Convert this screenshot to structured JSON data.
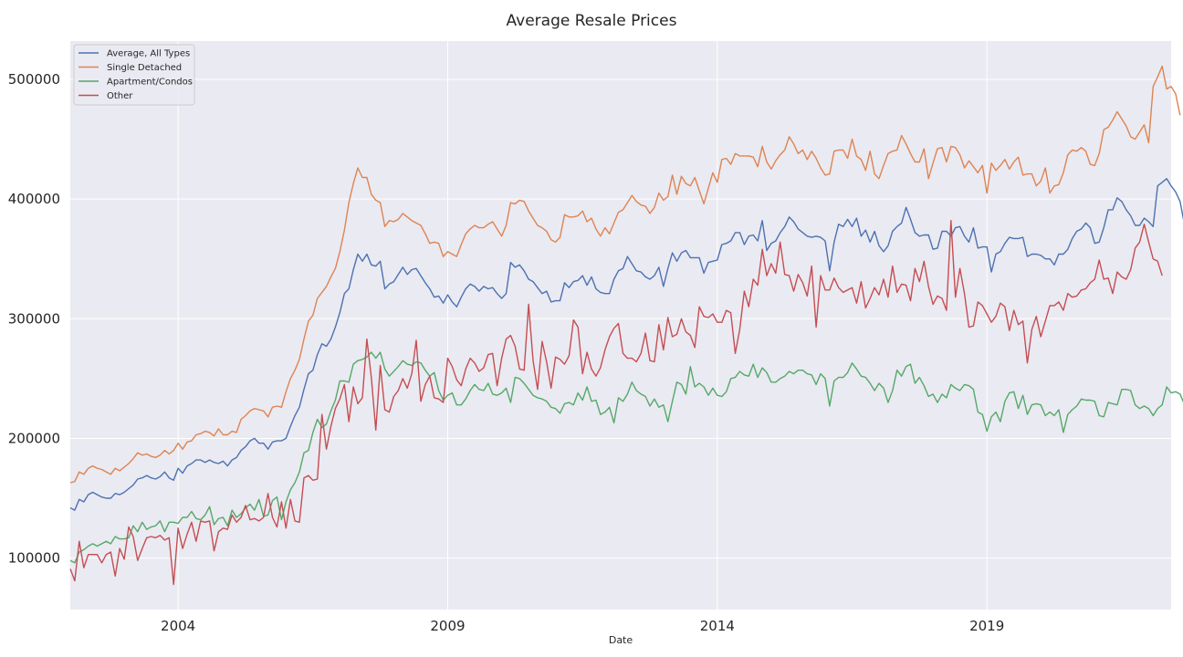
{
  "chart_data": {
    "type": "line",
    "title": "Average Resale Prices",
    "xlabel": "Date",
    "ylabel": "",
    "x_start": "2002-01",
    "x_end": "2022-06",
    "frequency": "monthly",
    "xlim": [
      "2002-01",
      "2022-06"
    ],
    "ylim": [
      57000,
      532000
    ],
    "x_ticks": [
      "2004",
      "2009",
      "2014",
      "2019"
    ],
    "y_ticks": [
      100000,
      200000,
      300000,
      400000,
      500000
    ],
    "grid": true,
    "legend_position": "top-left",
    "background": "#eaeaf2",
    "series": [
      {
        "name": "Average, All Types",
        "color": "#4c72b0",
        "values": [
          142000,
          140000,
          149000,
          147000,
          153000,
          155000,
          153000,
          151000,
          150000,
          150000,
          154000,
          153000,
          155000,
          158000,
          161000,
          166000,
          167000,
          169000,
          167000,
          166000,
          168000,
          172000,
          167000,
          165000,
          175000,
          171000,
          177000,
          179000,
          182000,
          182000,
          180000,
          182000,
          180000,
          179000,
          181000,
          177000,
          182000,
          184000,
          190000,
          193000,
          198000,
          200000,
          196000,
          196000,
          191000,
          197000,
          198000,
          198000,
          200000,
          210000,
          219000,
          226000,
          241000,
          254000,
          257000,
          270000,
          279000,
          277000,
          283000,
          293000,
          305000,
          321000,
          325000,
          341000,
          354000,
          348000,
          354000,
          345000,
          344000,
          348000,
          325000,
          329000,
          331000,
          337000,
          343000,
          337000,
          341000,
          342000,
          336000,
          330000,
          325000,
          318000,
          319000,
          313000,
          320000,
          314000,
          310000,
          318000,
          325000,
          329000,
          327000,
          323000,
          327000,
          325000,
          326000,
          321000,
          317000,
          321000,
          347000,
          343000,
          345000,
          340000,
          333000,
          331000,
          326000,
          321000,
          323000,
          314000,
          315000,
          315000,
          330000,
          326000,
          331000,
          332000,
          336000,
          328000,
          335000,
          325000,
          322000,
          321000,
          321000,
          333000,
          340000,
          342000,
          352000,
          346000,
          340000,
          339000,
          335000,
          333000,
          336000,
          343000,
          327000,
          342000,
          355000,
          348000,
          355000,
          357000,
          351000,
          351000,
          351000,
          338000,
          347000,
          348000,
          349000,
          362000,
          363000,
          365000,
          372000,
          372000,
          362000,
          369000,
          370000,
          365000,
          382000,
          357000,
          363000,
          365000,
          372000,
          377000,
          385000,
          381000,
          375000,
          372000,
          369000,
          368000,
          369000,
          368000,
          365000,
          340000,
          364000,
          379000,
          377000,
          383000,
          377000,
          384000,
          369000,
          374000,
          364000,
          373000,
          361000,
          356000,
          361000,
          373000,
          377000,
          380000,
          393000,
          383000,
          372000,
          369000,
          370000,
          370000,
          358000,
          359000,
          373000,
          373000,
          369000,
          376000,
          377000,
          369000,
          364000,
          376000,
          359000,
          360000,
          360000,
          339000,
          354000,
          356000,
          363000,
          368000,
          367000,
          367000,
          368000,
          352000,
          354000,
          354000,
          353000,
          350000,
          350000,
          345000,
          354000,
          354000,
          358000,
          367000,
          373000,
          375000,
          380000,
          376000,
          363000,
          364000,
          376000,
          391000,
          391000,
          401000,
          398000,
          391000,
          386000,
          378000,
          378000,
          384000,
          381000,
          377000,
          411000,
          414000,
          417000,
          411000,
          406000,
          398000,
          378000
        ]
      },
      {
        "name": "Single Detached",
        "color": "#dd8452",
        "values": [
          163000,
          164000,
          172000,
          170000,
          175000,
          177000,
          175000,
          174000,
          172000,
          170000,
          175000,
          173000,
          176000,
          179000,
          183000,
          188000,
          186000,
          187000,
          185000,
          184000,
          186000,
          190000,
          187000,
          190000,
          196000,
          191000,
          197000,
          198000,
          203000,
          204000,
          206000,
          205000,
          202000,
          208000,
          203000,
          203000,
          206000,
          205000,
          216000,
          219000,
          223000,
          225000,
          224000,
          223000,
          218000,
          226000,
          227000,
          226000,
          239000,
          250000,
          257000,
          266000,
          283000,
          298000,
          303000,
          317000,
          322000,
          327000,
          335000,
          342000,
          356000,
          374000,
          397000,
          413000,
          426000,
          418000,
          418000,
          404000,
          399000,
          397000,
          377000,
          382000,
          381000,
          383000,
          388000,
          385000,
          382000,
          380000,
          378000,
          371000,
          363000,
          364000,
          363000,
          352000,
          356000,
          354000,
          352000,
          362000,
          371000,
          375000,
          378000,
          376000,
          376000,
          379000,
          381000,
          375000,
          369000,
          378000,
          397000,
          396000,
          399000,
          398000,
          390000,
          384000,
          378000,
          376000,
          373000,
          366000,
          364000,
          368000,
          387000,
          385000,
          385000,
          386000,
          390000,
          381000,
          384000,
          375000,
          369000,
          376000,
          371000,
          380000,
          389000,
          391000,
          397000,
          403000,
          398000,
          395000,
          394000,
          388000,
          393000,
          405000,
          399000,
          402000,
          420000,
          404000,
          419000,
          413000,
          411000,
          418000,
          407000,
          396000,
          409000,
          422000,
          414000,
          433000,
          434000,
          429000,
          438000,
          436000,
          436000,
          436000,
          435000,
          427000,
          444000,
          431000,
          425000,
          432000,
          437000,
          441000,
          452000,
          446000,
          438000,
          441000,
          433000,
          440000,
          434000,
          426000,
          420000,
          421000,
          440000,
          441000,
          441000,
          434000,
          450000,
          436000,
          433000,
          424000,
          440000,
          421000,
          417000,
          428000,
          438000,
          440000,
          441000,
          453000,
          446000,
          438000,
          431000,
          431000,
          442000,
          417000,
          430000,
          442000,
          443000,
          431000,
          444000,
          443000,
          437000,
          426000,
          432000,
          427000,
          422000,
          428000,
          405000,
          430000,
          424000,
          428000,
          433000,
          425000,
          431000,
          435000,
          420000,
          421000,
          421000,
          411000,
          415000,
          426000,
          405000,
          411000,
          412000,
          422000,
          437000,
          441000,
          440000,
          443000,
          440000,
          429000,
          428000,
          438000,
          458000,
          460000,
          466000,
          473000,
          467000,
          461000,
          452000,
          450000,
          456000,
          462000,
          447000,
          494000,
          502000,
          511000,
          492000,
          494000,
          488000,
          470000
        ]
      },
      {
        "name": "Apartment/Condos",
        "color": "#55a868",
        "values": [
          98000,
          96000,
          105000,
          107000,
          110000,
          112000,
          110000,
          112000,
          114000,
          112000,
          118000,
          116000,
          116000,
          117000,
          127000,
          122000,
          130000,
          124000,
          126000,
          127000,
          131000,
          122000,
          130000,
          130000,
          129000,
          134000,
          134000,
          139000,
          133000,
          132000,
          136000,
          143000,
          128000,
          133000,
          134000,
          127000,
          140000,
          134000,
          137000,
          142000,
          145000,
          140000,
          149000,
          135000,
          136000,
          148000,
          151000,
          132000,
          147000,
          157000,
          163000,
          172000,
          188000,
          190000,
          205000,
          216000,
          209000,
          212000,
          223000,
          232000,
          248000,
          248000,
          247000,
          262000,
          265000,
          266000,
          268000,
          272000,
          267000,
          272000,
          258000,
          252000,
          256000,
          260000,
          265000,
          262000,
          261000,
          264000,
          263000,
          257000,
          252000,
          255000,
          240000,
          232000,
          236000,
          238000,
          228000,
          228000,
          233000,
          240000,
          245000,
          241000,
          240000,
          246000,
          237000,
          236000,
          238000,
          242000,
          230000,
          251000,
          250000,
          246000,
          241000,
          236000,
          234000,
          233000,
          231000,
          226000,
          225000,
          221000,
          229000,
          230000,
          228000,
          238000,
          232000,
          243000,
          231000,
          232000,
          220000,
          222000,
          226000,
          213000,
          234000,
          231000,
          237000,
          247000,
          240000,
          237000,
          235000,
          227000,
          233000,
          226000,
          228000,
          214000,
          231000,
          247000,
          245000,
          237000,
          260000,
          243000,
          246000,
          243000,
          236000,
          242000,
          236000,
          235000,
          239000,
          250000,
          251000,
          256000,
          253000,
          252000,
          262000,
          251000,
          259000,
          255000,
          247000,
          247000,
          250000,
          252000,
          256000,
          254000,
          257000,
          257000,
          254000,
          253000,
          245000,
          254000,
          250000,
          227000,
          248000,
          251000,
          251000,
          255000,
          263000,
          258000,
          252000,
          251000,
          246000,
          240000,
          246000,
          242000,
          230000,
          240000,
          257000,
          252000,
          260000,
          262000,
          246000,
          251000,
          244000,
          235000,
          237000,
          230000,
          237000,
          234000,
          245000,
          242000,
          240000,
          245000,
          244000,
          241000,
          222000,
          220000,
          206000,
          218000,
          222000,
          214000,
          231000,
          238000,
          239000,
          225000,
          236000,
          220000,
          228000,
          229000,
          228000,
          219000,
          222000,
          219000,
          224000,
          205000,
          220000,
          224000,
          227000,
          233000,
          232000,
          232000,
          231000,
          219000,
          218000,
          230000,
          229000,
          228000,
          241000,
          241000,
          240000,
          228000,
          225000,
          227000,
          225000,
          219000,
          225000,
          228000,
          243000,
          238000,
          239000,
          237000,
          228000,
          220000
        ]
      },
      {
        "name": "Other",
        "color": "#c44e52",
        "values": [
          91000,
          81000,
          114000,
          92000,
          103000,
          103000,
          103000,
          96000,
          103000,
          105000,
          85000,
          108000,
          99000,
          126000,
          118000,
          98000,
          108000,
          117000,
          118000,
          117000,
          119000,
          115000,
          117000,
          78000,
          125000,
          108000,
          120000,
          130000,
          114000,
          131000,
          130000,
          131000,
          106000,
          122000,
          125000,
          124000,
          136000,
          130000,
          134000,
          144000,
          132000,
          133000,
          131000,
          134000,
          154000,
          134000,
          126000,
          147000,
          125000,
          149000,
          131000,
          130000,
          167000,
          169000,
          165000,
          166000,
          220000,
          191000,
          210000,
          225000,
          233000,
          245000,
          214000,
          243000,
          229000,
          234000,
          283000,
          251000,
          207000,
          261000,
          224000,
          222000,
          235000,
          240000,
          250000,
          242000,
          254000,
          282000,
          231000,
          245000,
          252000,
          234000,
          233000,
          230000,
          267000,
          260000,
          249000,
          244000,
          258000,
          267000,
          263000,
          256000,
          259000,
          270000,
          271000,
          244000,
          267000,
          283000,
          286000,
          277000,
          258000,
          257000,
          312000,
          265000,
          241000,
          281000,
          264000,
          242000,
          268000,
          266000,
          262000,
          269000,
          299000,
          293000,
          254000,
          272000,
          258000,
          252000,
          259000,
          274000,
          285000,
          292000,
          296000,
          271000,
          267000,
          267000,
          264000,
          271000,
          288000,
          265000,
          264000,
          295000,
          274000,
          301000,
          285000,
          287000,
          300000,
          289000,
          286000,
          276000,
          310000,
          302000,
          301000,
          304000,
          297000,
          297000,
          307000,
          305000,
          271000,
          291000,
          323000,
          310000,
          333000,
          328000,
          358000,
          336000,
          346000,
          338000,
          364000,
          337000,
          336000,
          323000,
          337000,
          330000,
          319000,
          344000,
          293000,
          336000,
          324000,
          324000,
          334000,
          326000,
          322000,
          324000,
          326000,
          313000,
          331000,
          309000,
          317000,
          326000,
          320000,
          333000,
          318000,
          344000,
          322000,
          329000,
          328000,
          315000,
          342000,
          331000,
          348000,
          327000,
          312000,
          319000,
          317000,
          307000,
          382000,
          318000,
          342000,
          321000,
          293000,
          294000,
          314000,
          311000,
          304000,
          297000,
          302000,
          313000,
          310000,
          290000,
          307000,
          295000,
          298000,
          263000,
          291000,
          302000,
          285000,
          298000,
          311000,
          311000,
          314000,
          307000,
          321000,
          318000,
          319000,
          324000,
          325000,
          330000,
          333000,
          349000,
          333000,
          334000,
          321000,
          339000,
          335000,
          333000,
          341000,
          359000,
          364000,
          379000,
          364000,
          350000,
          348000,
          336000
        ]
      }
    ]
  }
}
